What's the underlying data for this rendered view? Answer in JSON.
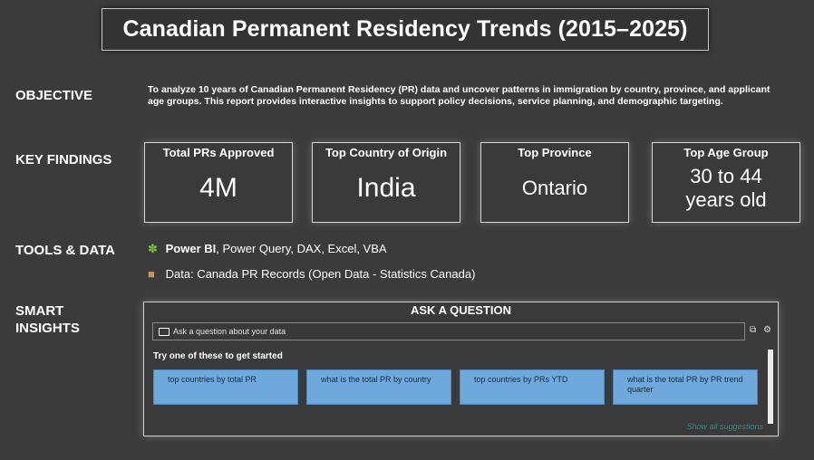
{
  "title": "Canadian Permanent Residency Trends (2015–2025)",
  "sections": {
    "objective": "OBJECTIVE",
    "key_findings": "KEY FINDINGS",
    "tools_data": "TOOLS & DATA",
    "smart_insights_line1": "SMART",
    "smart_insights_line2": "INSIGHTS"
  },
  "objective_text": "To analyze 10 years of Canadian Permanent Residency (PR) data and uncover patterns in immigration by country, province, and applicant age groups. This report provides interactive insights to support policy decisions, service planning, and demographic targeting.",
  "kpis": [
    {
      "title": "Total PRs Approved",
      "value": "4M"
    },
    {
      "title": "Top Country of Origin",
      "value": "India"
    },
    {
      "title": "Top Province",
      "value": "Ontario"
    },
    {
      "title": "Top Age Group",
      "value": "30 to 44 years old"
    }
  ],
  "tools": {
    "icon1": "puzzle-piece-icon",
    "tools_bold": "Power BI",
    "tools_rest": ", Power Query, DAX, Excel, VBA",
    "icon2": "package-icon",
    "data_line": "Data: Canada PR Records (Open Data - Statistics Canada)"
  },
  "qa": {
    "header": "ASK A QUESTION",
    "placeholder": "Ask a question about your data",
    "try_label": "Try one of these to get started",
    "suggestions": [
      "top countries by total PR",
      "what is the total PR by country",
      "top countries by PRs YTD",
      "what is the total PR by PR trend quarter"
    ],
    "show_all": "Show all suggestions"
  }
}
